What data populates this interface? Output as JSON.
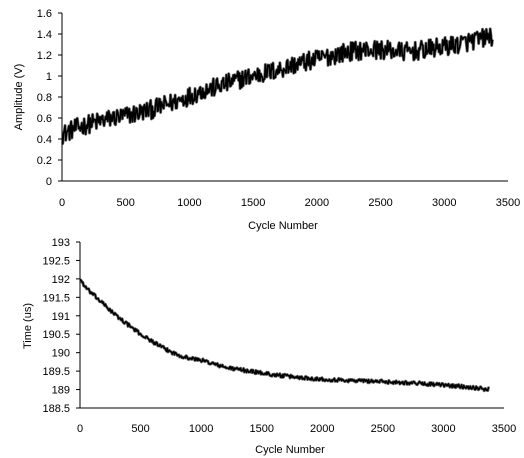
{
  "chart_data": [
    {
      "type": "line",
      "title": "",
      "xlabel": "Cycle Number",
      "ylabel": "Amplitude (V)",
      "xlim": [
        0,
        3500
      ],
      "ylim": [
        0,
        1.6
      ],
      "xticks": [
        "0",
        "500",
        "1000",
        "1500",
        "2000",
        "2500",
        "3000",
        "3500"
      ],
      "yticks": [
        "0",
        "0.2",
        "0.4",
        "0.6",
        "0.8",
        "1",
        "1.2",
        "1.4",
        "1.6"
      ],
      "grid": false,
      "legend": "none",
      "noise_band": 0.09,
      "color": "#000000",
      "series": [
        {
          "x": [
            0,
            100,
            200,
            300,
            400,
            500,
            600,
            700,
            800,
            900,
            1000,
            1100,
            1200,
            1300,
            1400,
            1500,
            1600,
            1700,
            1800,
            1900,
            2000,
            2100,
            2200,
            2300,
            2400,
            2500,
            2600,
            2700,
            2800,
            2900,
            3000,
            3100,
            3200,
            3300,
            3380
          ],
          "y": [
            0.44,
            0.5,
            0.54,
            0.57,
            0.6,
            0.62,
            0.65,
            0.68,
            0.72,
            0.76,
            0.81,
            0.86,
            0.89,
            0.93,
            0.97,
            1.0,
            1.03,
            1.06,
            1.1,
            1.13,
            1.16,
            1.19,
            1.22,
            1.24,
            1.25,
            1.25,
            1.24,
            1.23,
            1.24,
            1.26,
            1.28,
            1.3,
            1.33,
            1.36,
            1.38
          ]
        }
      ]
    },
    {
      "type": "line",
      "title": "",
      "xlabel": "Cycle Number",
      "ylabel": "Time (us)",
      "xlim": [
        0,
        3500
      ],
      "ylim": [
        188.5,
        193
      ],
      "xticks": [
        "0",
        "500",
        "1000",
        "1500",
        "2000",
        "2500",
        "3000",
        "3500"
      ],
      "yticks": [
        "188.5",
        "189",
        "189.5",
        "190",
        "190.5",
        "191",
        "191.5",
        "192",
        "192.5",
        "193"
      ],
      "grid": false,
      "legend": "none",
      "noise_band": 0.05,
      "color": "#000000",
      "series": [
        {
          "x": [
            0,
            50,
            100,
            200,
            300,
            400,
            500,
            600,
            700,
            800,
            900,
            1000,
            1100,
            1200,
            1300,
            1400,
            1500,
            1600,
            1800,
            2000,
            2200,
            2400,
            2600,
            2800,
            3000,
            3200,
            3380
          ],
          "y": [
            192.0,
            191.75,
            191.6,
            191.3,
            191.0,
            190.75,
            190.5,
            190.3,
            190.1,
            189.95,
            189.85,
            189.8,
            189.7,
            189.6,
            189.55,
            189.5,
            189.45,
            189.4,
            189.33,
            189.28,
            189.25,
            189.23,
            189.2,
            189.17,
            189.12,
            189.07,
            189.0
          ]
        }
      ]
    }
  ]
}
